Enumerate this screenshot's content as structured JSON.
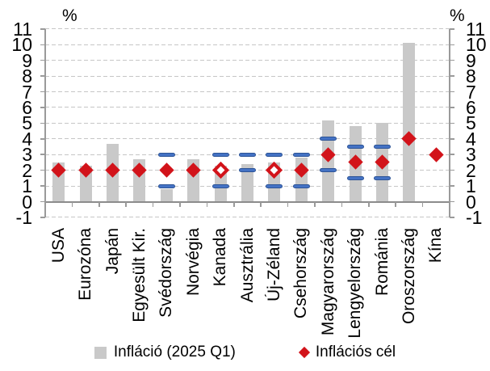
{
  "chart_data": {
    "type": "bar",
    "unit_label_left": "%",
    "unit_label_right": "%",
    "ylim": [
      -1,
      11
    ],
    "yticks": [
      11,
      10,
      9,
      8,
      7,
      6,
      5,
      4,
      3,
      2,
      1,
      0,
      -1
    ],
    "grid": "horizontal-dashed",
    "legend_position": "bottom",
    "categories": [
      "USA",
      "Eurozóna",
      "Japán",
      "Egyesült Kir.",
      "Svédország",
      "Norvégia",
      "Kanada",
      "Ausztrália",
      "Új-Zéland",
      "Csehország",
      "Magyarország",
      "Lengyelország",
      "Románia",
      "Oroszország",
      "Kína"
    ],
    "series": [
      {
        "id": "inflation-bars",
        "name": "Infláció (2025 Q1)",
        "type": "bar",
        "color": "#c9c9c9",
        "values": [
          2.5,
          2.3,
          3.7,
          2.7,
          0.8,
          2.7,
          2.3,
          2.4,
          2.5,
          2.8,
          5.2,
          4.8,
          5.0,
          10.1,
          -0.1
        ]
      },
      {
        "id": "inflation-target-diamonds",
        "name": "Inflációs cél",
        "type": "diamond-marker",
        "color": "#d2131a",
        "values": [
          2,
          2,
          2,
          2,
          2,
          2,
          2,
          null,
          2,
          2,
          3,
          2.5,
          2.5,
          4,
          3
        ],
        "open": [
          false,
          false,
          false,
          false,
          false,
          false,
          true,
          false,
          true,
          false,
          false,
          false,
          false,
          false,
          false
        ]
      },
      {
        "id": "target-band-dashes",
        "type": "range-dash",
        "color": "#4472c4",
        "border_color": "#2e5597",
        "ranges": [
          null,
          null,
          null,
          null,
          [
            1,
            3
          ],
          null,
          [
            1,
            3
          ],
          [
            2,
            3
          ],
          [
            1,
            3
          ],
          [
            1,
            3
          ],
          [
            2,
            4
          ],
          [
            1.5,
            3.5
          ],
          [
            1.5,
            3.5
          ],
          null,
          null
        ]
      }
    ],
    "legend": [
      {
        "label": "Infláció (2025 Q1)",
        "marker": "square",
        "color": "#c9c9c9"
      },
      {
        "label": "Inflációs cél",
        "marker": "diamond",
        "color": "#d2131a"
      }
    ],
    "colors": {
      "bar": "#c9c9c9",
      "target": "#d2131a",
      "band": "#4472c4",
      "gridline": "#c6c6c6",
      "axis": "#9a9a9a"
    }
  }
}
